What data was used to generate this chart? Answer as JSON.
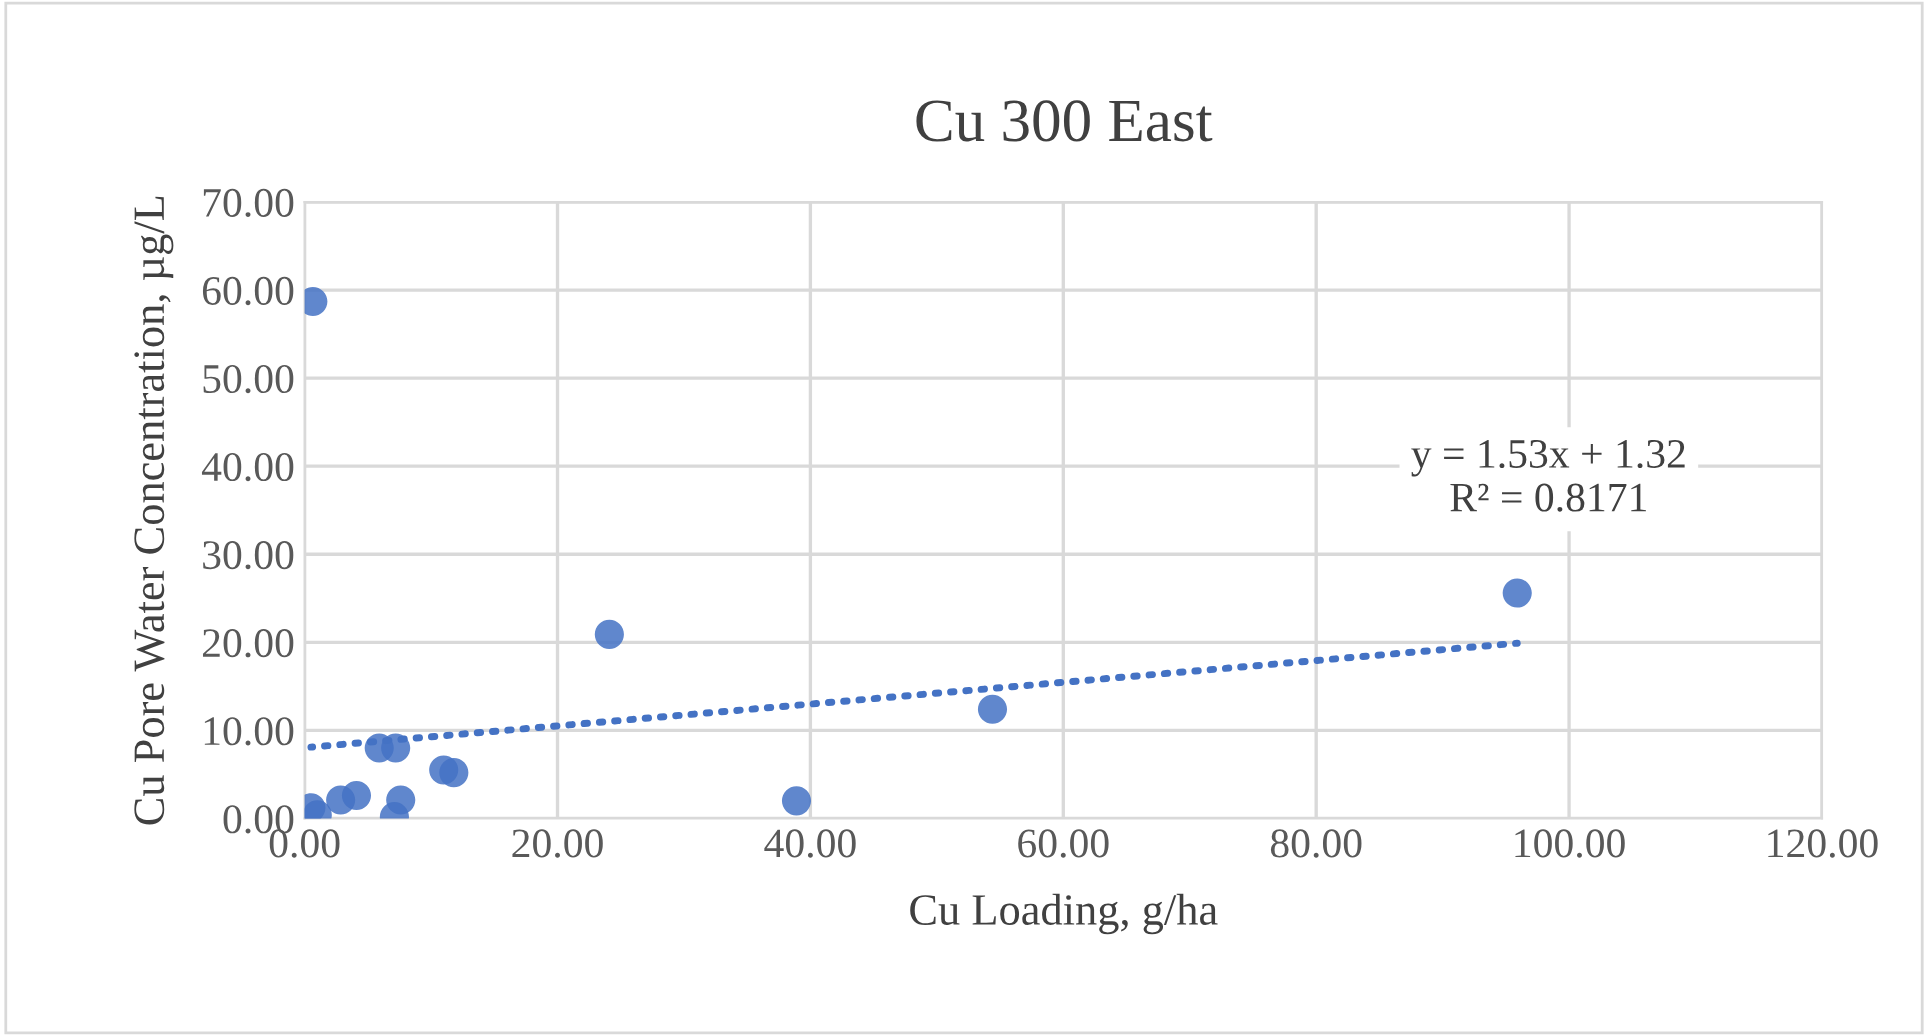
{
  "chart_data": {
    "type": "scatter",
    "title": "Cu 300 East",
    "xlabel": "Cu Loading, g/ha",
    "ylabel": "Cu Pore Water Concentration, µg/L",
    "series": [
      {
        "color": "#4472c4",
        "marker": "circle",
        "x": [
          0.65,
          0.5,
          1.0,
          2.85,
          4.1,
          5.9,
          7.2,
          7.6,
          7.1,
          11.0,
          11.8,
          24.1,
          38.9,
          54.4,
          95.9
        ],
        "values": [
          58.7,
          1.2,
          0.4,
          2.1,
          2.6,
          8.0,
          8.0,
          2.1,
          0.2,
          5.5,
          5.2,
          20.9,
          2.0,
          12.4,
          25.6
        ]
      },
      {
        "type": "line",
        "color": "#4472c4",
        "line_style": "dotted",
        "marker": "none",
        "x": [
          0.5,
          95.9
        ],
        "values": [
          8.1,
          19.9
        ]
      }
    ],
    "annotations": [
      "y = 1.53x + 1.32",
      "R² = 0.8171"
    ],
    "xlim": [
      0,
      120
    ],
    "ylim": [
      0,
      70
    ],
    "xticks": [
      {
        "value": 0,
        "label": "0.00"
      },
      {
        "value": 20,
        "label": "20.00"
      },
      {
        "value": 40,
        "label": "40.00"
      },
      {
        "value": 60,
        "label": "60.00"
      },
      {
        "value": 80,
        "label": "80.00"
      },
      {
        "value": 100,
        "label": "100.00"
      },
      {
        "value": 120,
        "label": "120.00"
      }
    ],
    "yticks": [
      {
        "value": 0,
        "label": "0.00"
      },
      {
        "value": 10,
        "label": "10.00"
      },
      {
        "value": 20,
        "label": "20.00"
      },
      {
        "value": 30,
        "label": "30.00"
      },
      {
        "value": 40,
        "label": "40.00"
      },
      {
        "value": 50,
        "label": "50.00"
      },
      {
        "value": 60,
        "label": "60.00"
      },
      {
        "value": 70,
        "label": "70.00"
      }
    ],
    "grid": true,
    "legend": false
  }
}
